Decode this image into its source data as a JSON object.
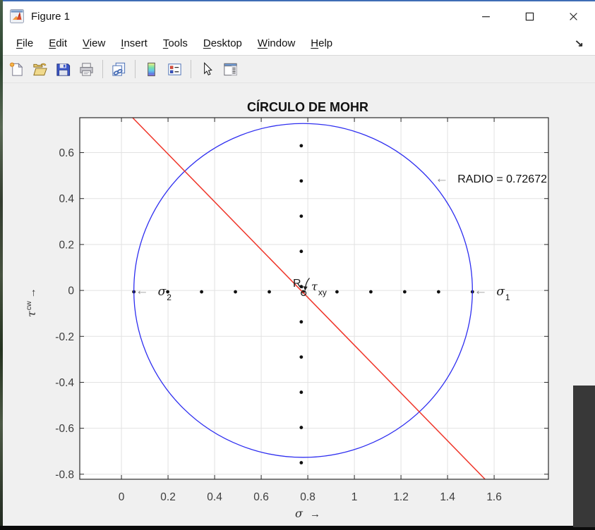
{
  "window": {
    "title": "Figure 1",
    "app_icon": "matlab-logo-icon",
    "controls": [
      {
        "name": "minimize"
      },
      {
        "name": "maximize"
      },
      {
        "name": "close"
      }
    ],
    "dock_arrow_glyph": "↘"
  },
  "menu": {
    "items": [
      {
        "label": "File",
        "underline": 0
      },
      {
        "label": "Edit",
        "underline": 0
      },
      {
        "label": "View",
        "underline": 0
      },
      {
        "label": "Insert",
        "underline": 0
      },
      {
        "label": "Tools",
        "underline": 0
      },
      {
        "label": "Desktop",
        "underline": 0
      },
      {
        "label": "Window",
        "underline": 0
      },
      {
        "label": "Help",
        "underline": 0
      }
    ]
  },
  "toolbar": {
    "groups": [
      [
        "new-figure",
        "open-file",
        "save-figure",
        "print"
      ],
      [
        "link-plot"
      ],
      [
        "insert-colorbar",
        "insert-legend"
      ],
      [
        "edit-plot",
        "property-inspector"
      ]
    ]
  },
  "chart_data": {
    "type": "line",
    "title": "CÍRCULO DE MOHR",
    "xlabel": "σ →",
    "ylabel": "τ^{cw} →",
    "xlabel_parts": {
      "symbol": "σ",
      "arrow": "→"
    },
    "ylabel_parts": {
      "symbol": "τ",
      "sup": "cw",
      "arrow": "→"
    },
    "xlim": [
      -0.179,
      1.833
    ],
    "ylim": [
      -0.822,
      0.752
    ],
    "grid": true,
    "xticks": {
      "values": [
        0,
        0.2,
        0.4,
        0.6,
        0.8,
        1.0,
        1.2,
        1.4,
        1.6
      ],
      "labels": [
        "0",
        "0.2",
        "0.4",
        "0.6",
        "0.8",
        "1",
        "1.2",
        "1.4",
        "1.6"
      ]
    },
    "yticks": {
      "values": [
        0.6,
        0.4,
        0.2,
        0,
        -0.2,
        -0.4,
        -0.6,
        -0.8
      ],
      "labels": [
        "0.6",
        "0.4",
        "0.2",
        "0",
        "-0.2",
        "-0.4",
        "-0.6",
        "-0.8"
      ]
    },
    "circle": {
      "center": [
        0.78,
        0
      ],
      "radius": 0.72672,
      "color": "#2e2ef0"
    },
    "diameter_line": {
      "color": "#ef3428",
      "endpoints": [
        [
          0.048,
          0.752
        ],
        [
          1.561,
          -0.822
        ]
      ]
    },
    "dots": {
      "color": "#111111",
      "horizontal": {
        "y": -0.006,
        "x": [
          0.0533,
          0.1986,
          0.344,
          0.4893,
          0.6347,
          0.78,
          0.9253,
          1.0707,
          1.216,
          1.3614,
          1.5067
        ]
      },
      "vertical": {
        "x": 0.772,
        "y": [
          0.63,
          0.4767,
          0.3233,
          0.17,
          0.0167,
          -0.1367,
          -0.29,
          -0.4433,
          -0.5967,
          -0.75
        ]
      }
    },
    "center_marker": {
      "x": 0.782,
      "y": -0.012,
      "style": "open-circle"
    },
    "annotations": {
      "radius_label": {
        "arrow": "←",
        "text": "RADIO = 0.72672",
        "x": 1.352,
        "y": 0.488
      },
      "sigma1": {
        "arrow": "←",
        "symbol": "σ",
        "sub": "1",
        "x": 1.5067,
        "y": 0
      },
      "sigma2": {
        "arrow": "←",
        "symbol": "σ",
        "sub": "2",
        "x": 0.0533,
        "y": 0
      },
      "center_label": {
        "text": "R,",
        "symbol": "τ",
        "sub": "xy",
        "x": 0.736,
        "y": 0.031,
        "symbol_x": 0.815,
        "symbol_y": 0.015
      }
    },
    "colors": {
      "grid": "#e2e2e2",
      "axis": "#2a2a2a",
      "tick_text": "#3c3c3c",
      "plot_bg": "#ffffff",
      "figure_bg": "#f0f0f0",
      "annotation_arrow": "#8f8f8f",
      "annotation_text": "#111111"
    }
  }
}
